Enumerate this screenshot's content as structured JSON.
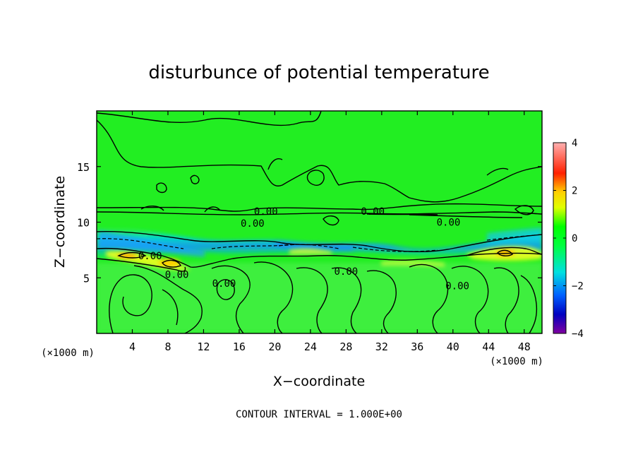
{
  "chart_data": {
    "type": "heatmap",
    "title": "disturbunce of potential temperature",
    "xlabel": "X−coordinate",
    "ylabel": "Z−coordinate",
    "x_unit": "(×1000 m)",
    "z_unit": "(×1000 m)",
    "xlim": [
      0,
      50
    ],
    "ylim": [
      0,
      20
    ],
    "x_ticks": [
      "4",
      "8",
      "12",
      "16",
      "20",
      "24",
      "28",
      "32",
      "36",
      "40",
      "44",
      "48"
    ],
    "x_tick_values": [
      4,
      8,
      12,
      16,
      20,
      24,
      28,
      32,
      36,
      40,
      44,
      48
    ],
    "y_ticks": [
      "5",
      "10",
      "15"
    ],
    "y_tick_values": [
      5,
      10,
      15
    ],
    "colorbar": {
      "range": [
        -4,
        4
      ],
      "ticks": [
        "4",
        "2",
        "0",
        "−2",
        "−4"
      ],
      "tick_values": [
        4,
        2,
        0,
        -2,
        -4
      ],
      "colors": [
        "#8000a0",
        "#0000c0",
        "#0060ff",
        "#00e0e0",
        "#00ff00",
        "#e0ff00",
        "#ffd000",
        "#ff2000",
        "#ffb0b0"
      ]
    },
    "background_color": "#22ee22",
    "contour_interval": 1.0,
    "contour_labels": [
      {
        "text": "0.00",
        "x": 19.0,
        "z": 11.0
      },
      {
        "text": "0.00",
        "x": 17.5,
        "z": 9.9
      },
      {
        "text": "0.00",
        "x": 31.0,
        "z": 11.0
      },
      {
        "text": "0.00",
        "x": 39.5,
        "z": 10.0
      },
      {
        "text": "0.00",
        "x": 28.0,
        "z": 5.6
      },
      {
        "text": "0.00",
        "x": 14.3,
        "z": 4.5
      },
      {
        "text": "0.00",
        "x": 9.0,
        "z": 5.3
      },
      {
        "text": "0.00",
        "x": 40.5,
        "z": 4.3
      },
      {
        "text": "0.00",
        "x": 6.0,
        "z": 7.0
      }
    ],
    "anomaly_bands": [
      {
        "name": "cold",
        "z_range": [
          6.7,
          9.4
        ],
        "value": -1.5
      },
      {
        "name": "warm",
        "z_range": [
          6.2,
          7.6
        ],
        "value": 1.3
      }
    ],
    "note": "CONTOUR INTERVAL = 1.000E+00"
  }
}
